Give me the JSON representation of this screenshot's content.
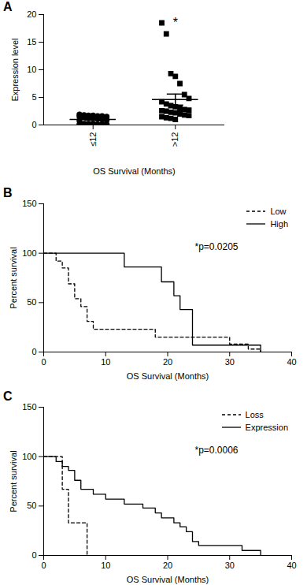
{
  "chart_data": [
    {
      "type": "scatter",
      "title": "A",
      "x_label": "OS Survival (Months)",
      "y_label": "Expression level",
      "categories": [
        "≤12",
        ">12"
      ],
      "ylim": [
        0,
        20
      ],
      "yticks": [
        0,
        5,
        10,
        15,
        20
      ],
      "color": "#000000",
      "groups": [
        {
          "marker": "circle",
          "values": [
            1.9,
            1.8,
            1.7,
            1.7,
            1.6,
            1.6,
            1.5,
            1.5,
            1.4,
            1.3,
            1.2,
            1.1,
            1.0,
            0.9,
            0.8,
            0.2,
            0.2,
            0.2,
            0.1,
            0.1,
            0.1,
            0.1,
            0.1
          ],
          "mean": 1.0,
          "error": 0.15
        },
        {
          "marker": "square",
          "values": [
            18.5,
            16.5,
            9.3,
            8.8,
            7.5,
            5.5,
            4.8,
            4.2,
            3.8,
            3.5,
            3.3,
            3.0,
            2.8,
            2.7,
            2.6,
            2.5,
            2.3,
            2.2,
            2.0,
            1.8,
            1.7,
            1.5,
            1.3,
            1.2,
            1.0
          ],
          "mean": 4.6,
          "error": 1.0
        }
      ],
      "annotations": [
        {
          "text": "*",
          "category": ">12"
        }
      ]
    },
    {
      "type": "line",
      "title": "B",
      "x_label": "OS Survival (Months)",
      "y_label": "Percent survival",
      "xlim": [
        0,
        40
      ],
      "xticks": [
        0,
        10,
        20,
        30,
        40
      ],
      "ylim": [
        0,
        150
      ],
      "yticks": [
        0,
        50,
        100,
        150
      ],
      "legend": "top-right",
      "series": [
        {
          "name": "Low",
          "color": "#000000",
          "line_style": "dashed",
          "x": [
            0,
            2,
            3,
            4,
            5,
            6,
            7,
            8,
            18,
            30,
            33,
            35
          ],
          "values": [
            100,
            92,
            85,
            69,
            54,
            46,
            31,
            23,
            15,
            8,
            3,
            0
          ]
        },
        {
          "name": "High",
          "color": "#000000",
          "line_style": "solid",
          "x": [
            0,
            13,
            19,
            21,
            22,
            24,
            35
          ],
          "values": [
            100,
            86,
            71,
            57,
            43,
            7,
            0
          ]
        }
      ],
      "annotations": [
        {
          "text": "*p=0.0205"
        }
      ]
    },
    {
      "type": "line",
      "title": "C",
      "x_label": "OS Survival (Months)",
      "y_label": "Percent survival",
      "xlim": [
        0,
        40
      ],
      "xticks": [
        0,
        10,
        20,
        30,
        40
      ],
      "ylim": [
        0,
        150
      ],
      "yticks": [
        0,
        50,
        100,
        150
      ],
      "legend": "top-right",
      "series": [
        {
          "name": "Loss",
          "color": "#000000",
          "line_style": "dashed",
          "x": [
            0,
            3,
            4,
            7
          ],
          "values": [
            100,
            67,
            33,
            0
          ]
        },
        {
          "name": "Expression",
          "color": "#000000",
          "line_style": "solid",
          "x": [
            0,
            2,
            3,
            4,
            5,
            6,
            8,
            10,
            13,
            16,
            18,
            19,
            21,
            22,
            23,
            24,
            25,
            32,
            35
          ],
          "values": [
            100,
            95,
            90,
            86,
            76,
            67,
            62,
            57,
            52,
            48,
            43,
            38,
            33,
            29,
            24,
            14,
            10,
            5,
            0
          ]
        }
      ],
      "annotations": [
        {
          "text": "*p=0.0006"
        }
      ]
    }
  ]
}
